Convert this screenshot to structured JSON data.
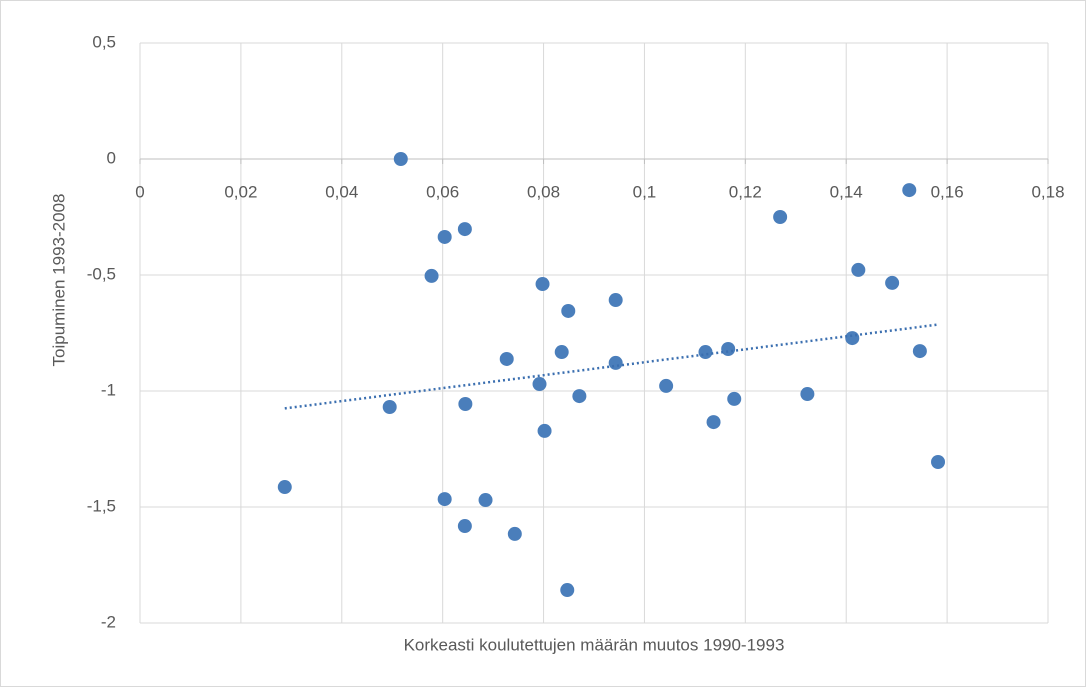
{
  "chart_data": {
    "type": "scatter",
    "x_label": "Korkeasti koulutettujen määrän muutos 1990-1993",
    "y_label": "Toipuminen 1993-2008",
    "color": "#4a7ebb",
    "trendline": "linear",
    "trendline_color": "#3b6fb0",
    "grid": true,
    "xlim": [
      0,
      0.18
    ],
    "ylim": [
      -2,
      0.5
    ],
    "xticks": [
      0,
      {
        "value": 0.02,
        "label": "0,02"
      },
      {
        "value": 0.04,
        "label": "0,04"
      },
      {
        "value": 0.06,
        "label": "0,06"
      },
      {
        "value": 0.08,
        "label": "0,08"
      },
      {
        "value": 0.1,
        "label": "0,1"
      },
      {
        "value": 0.12,
        "label": "0,12"
      },
      {
        "value": 0.14,
        "label": "0,14"
      },
      {
        "value": 0.16,
        "label": "0,16"
      },
      {
        "value": 0.18,
        "label": "0,18"
      }
    ],
    "yticks": [
      -2,
      {
        "value": -1.5,
        "label": "-1,5"
      },
      -1,
      {
        "value": -0.5,
        "label": "-0,5"
      },
      0,
      {
        "value": 0.5,
        "label": "0,5"
      }
    ],
    "x": [
      0.0287,
      0.0517,
      0.0495,
      0.0578,
      0.0604,
      0.0644,
      0.0645,
      0.0604,
      0.0644,
      0.0685,
      0.0727,
      0.0743,
      0.0798,
      0.0792,
      0.0802,
      0.0836,
      0.0849,
      0.0847,
      0.0871,
      0.0943,
      0.0943,
      0.1043,
      0.1121,
      0.1137,
      0.1166,
      0.1178,
      0.1269,
      0.1323,
      0.1412,
      0.1424,
      0.1491,
      0.1525,
      0.1546,
      0.1582
    ],
    "values": [
      -1.414,
      0.0,
      -1.069,
      -0.504,
      -0.336,
      -0.302,
      -1.056,
      -1.466,
      -1.582,
      -1.47,
      -0.862,
      -1.616,
      -0.539,
      -0.97,
      -1.172,
      -0.832,
      -0.655,
      -1.858,
      -1.022,
      -0.608,
      -0.879,
      -0.978,
      -0.832,
      -1.134,
      -0.819,
      -1.034,
      -0.25,
      -1.013,
      -0.772,
      -0.478,
      -0.534,
      -0.134,
      -0.828,
      -1.306
    ]
  }
}
